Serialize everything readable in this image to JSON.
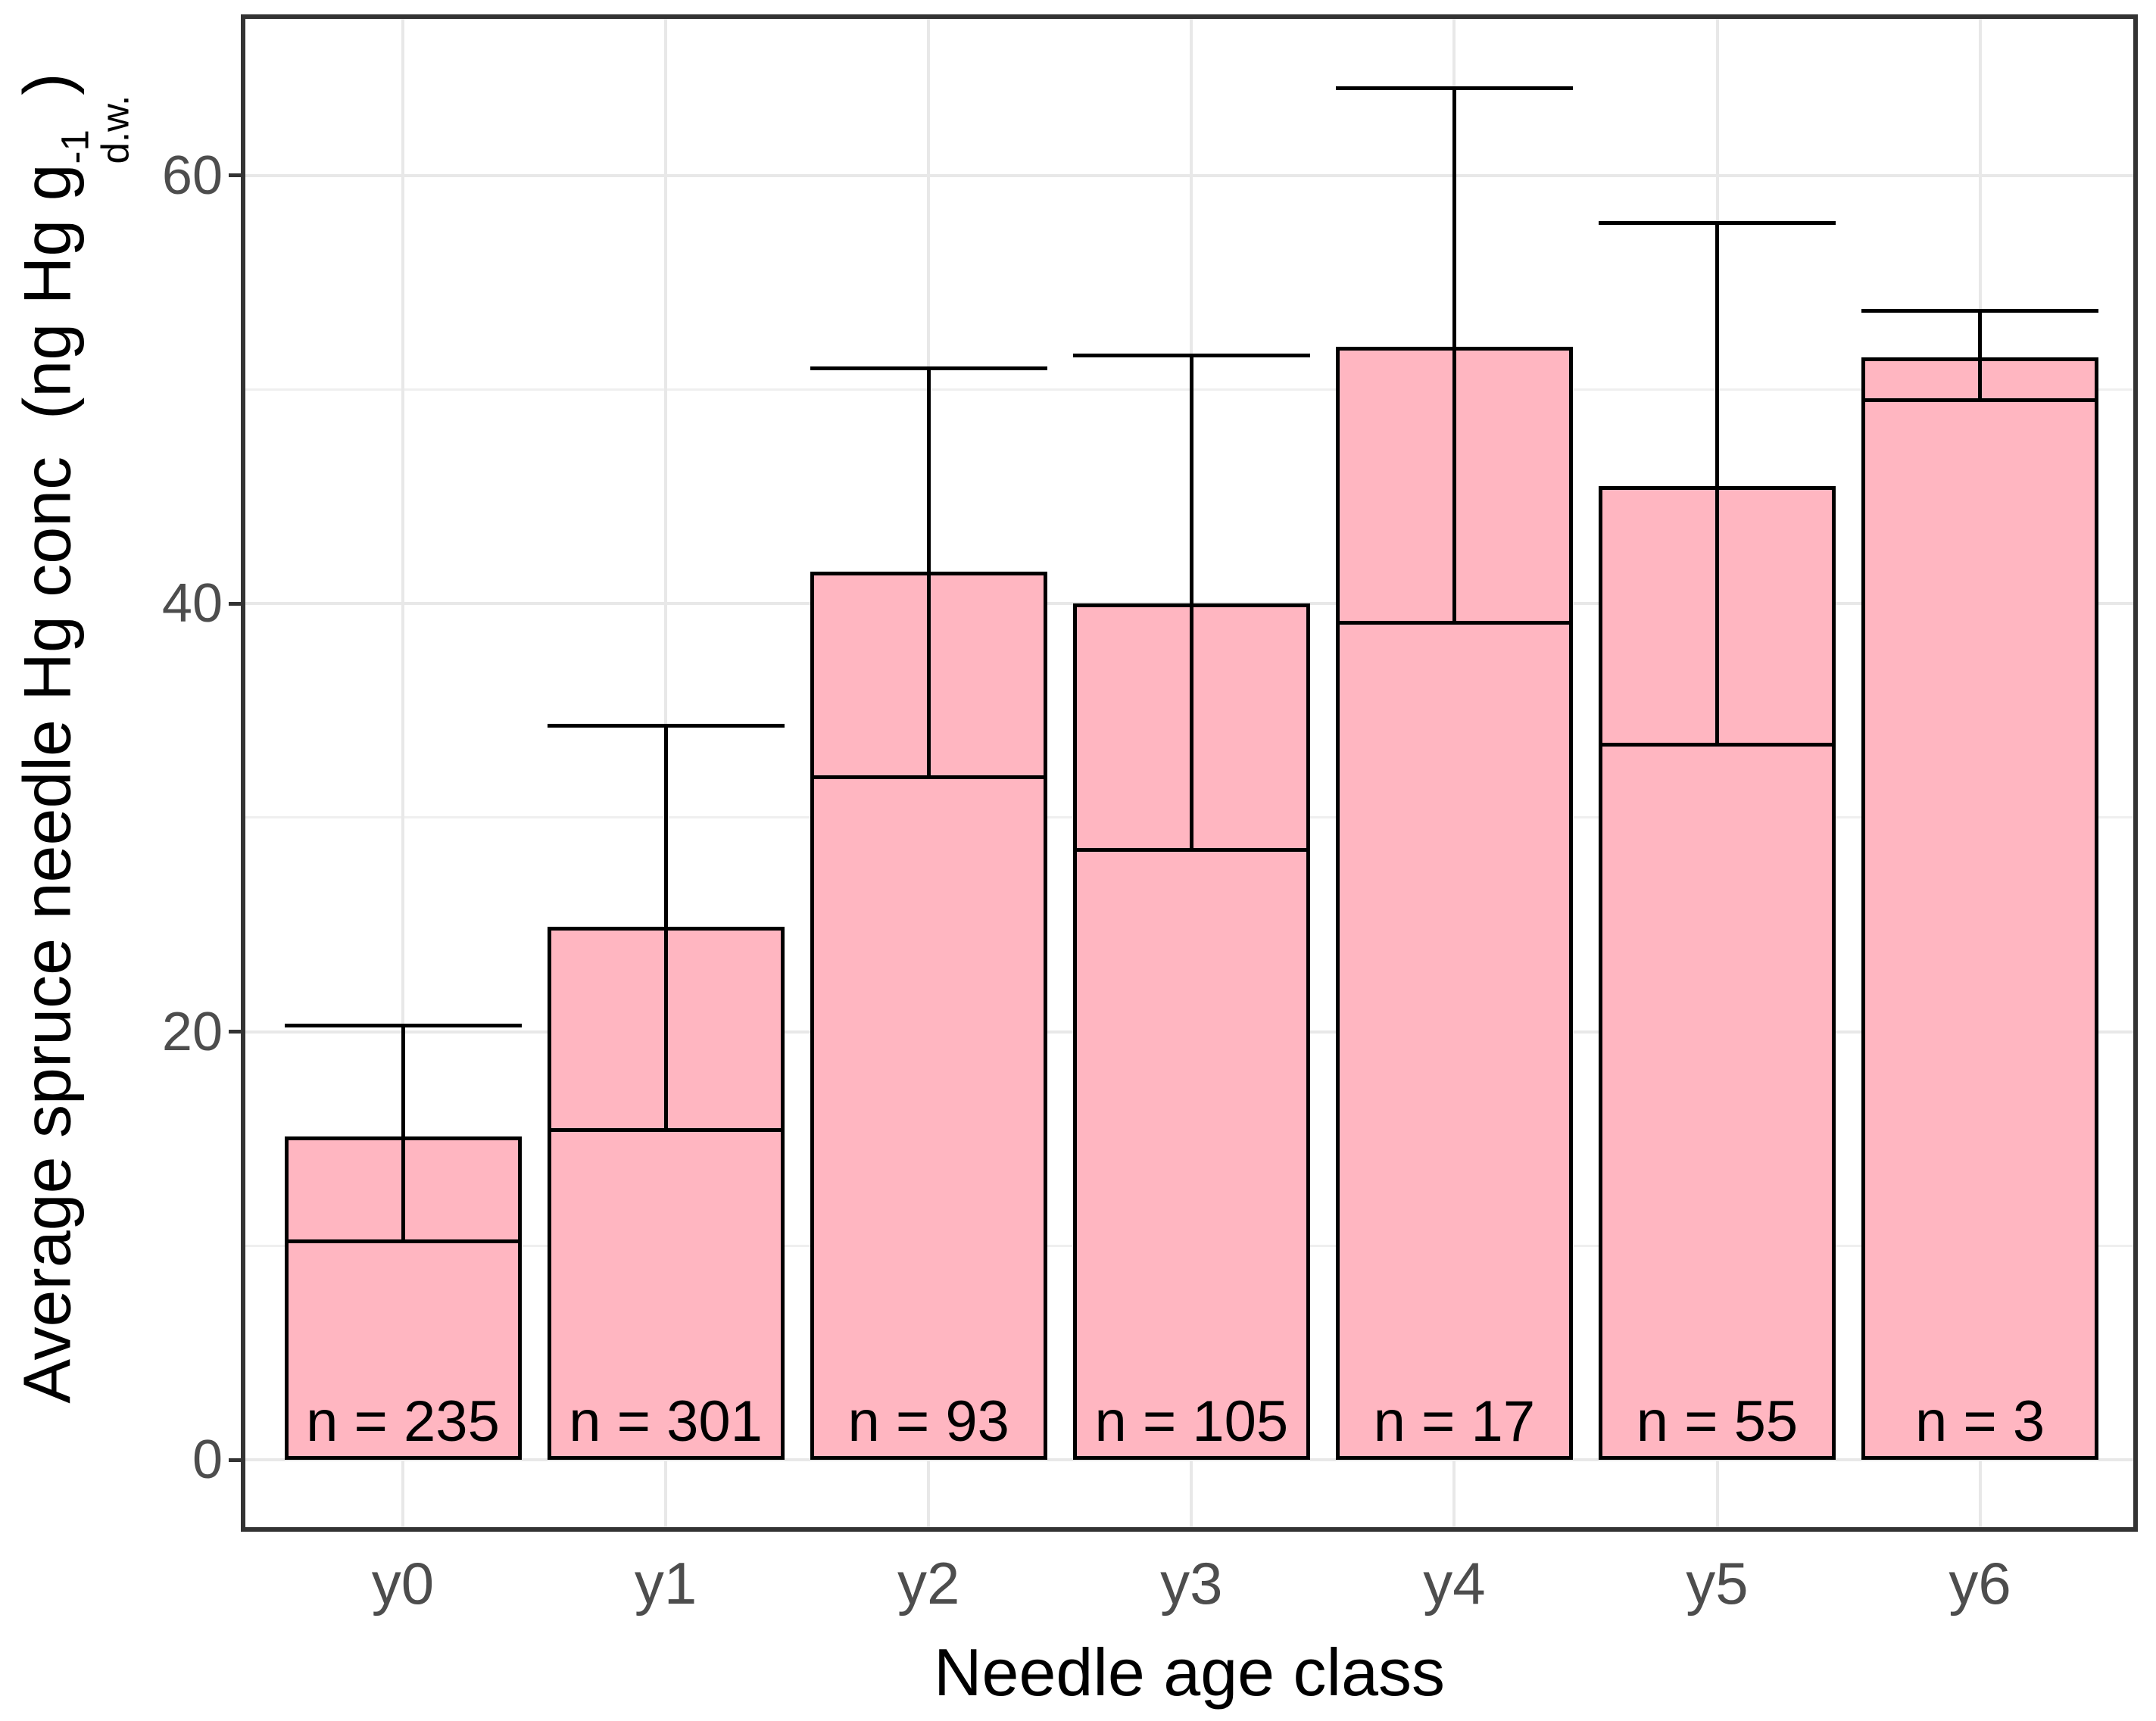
{
  "figure": {
    "background": "#ffffff",
    "panel_border_color": "#333333",
    "grid_major_color": "#e8e8e8",
    "grid_minor_color": "#efefef",
    "tick_label_color": "#4d4d4d"
  },
  "axes": {
    "x_title": "Needle age class",
    "y_title": {
      "prefix": "Average spruce needle Hg conc  (ng Hg g",
      "superscript": "-1",
      "subscript": "d.w.",
      "suffix": ")"
    },
    "x_tick_labels": [
      "y0",
      "y1",
      "y2",
      "y3",
      "y4",
      "y5",
      "y6"
    ],
    "y_tick_labels": [
      "0",
      "20",
      "40",
      "60"
    ]
  },
  "chart_data": {
    "type": "bar",
    "title": "",
    "xlabel": "Needle age class",
    "ylabel": "Average spruce needle Hg conc (ng Hg g^-1_d.w.)",
    "categories": [
      "y0",
      "y1",
      "y2",
      "y3",
      "y4",
      "y5",
      "y6"
    ],
    "values": [
      15.1,
      24.9,
      41.5,
      40.0,
      52.0,
      45.5,
      51.5
    ],
    "error_low": [
      10.2,
      15.4,
      31.9,
      28.5,
      39.1,
      33.4,
      49.5
    ],
    "error_high": [
      20.3,
      34.3,
      51.0,
      51.6,
      64.1,
      57.8,
      53.7
    ],
    "sample_size_labels": [
      "n = 235",
      "n = 301",
      "n = 93",
      "n = 105",
      "n = 17",
      "n = 55",
      "n = 3"
    ],
    "y_ticks_major": [
      0,
      20,
      40,
      60
    ],
    "y_ticks_minor": [
      10,
      30,
      50
    ],
    "ylim": [
      -3.2,
      67.3
    ],
    "grid": true,
    "legend": false,
    "bar_fill": "#ffb6c1",
    "bar_stroke": "#000000",
    "errorbar_color": "#000000"
  }
}
